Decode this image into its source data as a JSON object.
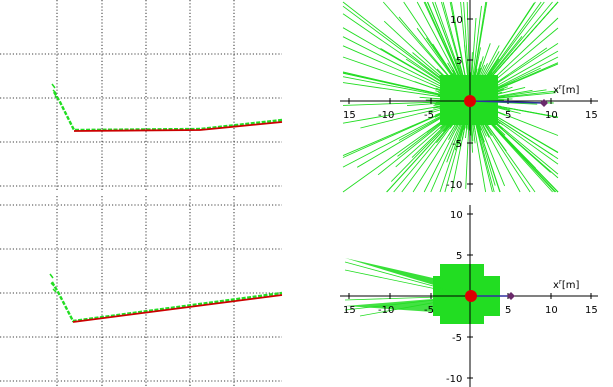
{
  "colors": {
    "scan_green": "#22dd22",
    "path_red": "#cc0000",
    "robot_red": "#dd0000",
    "target_purple": "#6a2a6a",
    "grid": "#000000"
  },
  "left_panels": [
    {
      "name": "top-left-map"
    },
    {
      "name": "bottom-left-map"
    }
  ],
  "right_panels": [
    {
      "name": "top-right-scan",
      "x_ticks": [
        "15",
        "-10",
        "-5",
        "5",
        "10",
        "15"
      ],
      "y_ticks": [
        "10",
        "5",
        "-5",
        "-10"
      ],
      "x_axis_label": "x",
      "x_axis_sup": "r",
      "x_axis_unit": "[m]"
    },
    {
      "name": "bottom-right-scan",
      "x_ticks": [
        "15",
        "-10",
        "-5",
        "5",
        "10",
        "15"
      ],
      "y_ticks": [
        "10",
        "5",
        "-5",
        "-10"
      ],
      "x_axis_label": "x",
      "x_axis_sup": "r",
      "x_axis_unit": "[m]"
    }
  ]
}
